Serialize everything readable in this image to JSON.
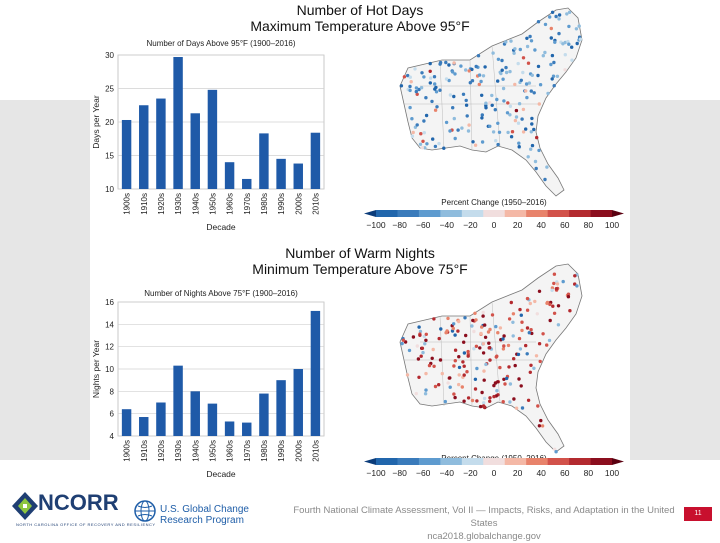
{
  "hot_days": {
    "title_line1": "Number of Hot Days",
    "title_line2": "Maximum Temperature Above 95°F",
    "map_legend_title": "Percent Change (1950–2016)"
  },
  "warm_nights": {
    "title_line1": "Number of Warm Nights",
    "title_line2": "Minimum Temperature Above 75°F",
    "map_legend_title": "Percent Change (1950–2016)"
  },
  "colorbar": {
    "ticks": [
      "−100",
      "−80",
      "−60",
      "−40",
      "−20",
      "0",
      "20",
      "40",
      "60",
      "80",
      "100"
    ],
    "colors": [
      "#2166ac",
      "#3a7bbb",
      "#5e9bcf",
      "#8fbcdd",
      "#c4dcec",
      "#f1dede",
      "#f4b8a6",
      "#e8836b",
      "#d2524a",
      "#b32a2f",
      "#8b0e1e"
    ]
  },
  "chart_data": [
    {
      "type": "bar",
      "title": "Number of Days Above 95°F (1900–2016)",
      "xlabel": "Decade",
      "ylabel": "Days per Year",
      "categories": [
        "1900s",
        "1910s",
        "1920s",
        "1930s",
        "1940s",
        "1950s",
        "1960s",
        "1970s",
        "1980s",
        "1990s",
        "2000s",
        "2010s"
      ],
      "values": [
        20.3,
        22.5,
        23.5,
        29.7,
        21.3,
        24.8,
        14.0,
        11.5,
        18.3,
        14.5,
        13.8,
        18.4
      ],
      "ylim": [
        10,
        30
      ],
      "yticks": [
        10,
        15,
        20,
        25,
        30
      ],
      "color": "#1f5aa8"
    },
    {
      "type": "bar",
      "title": "Number of Nights Above 75°F (1900–2016)",
      "xlabel": "Decade",
      "ylabel": "Nights per Year",
      "categories": [
        "1900s",
        "1910s",
        "1920s",
        "1930s",
        "1940s",
        "1950s",
        "1960s",
        "1970s",
        "1980s",
        "1990s",
        "2000s",
        "2010s"
      ],
      "values": [
        6.4,
        5.7,
        7.0,
        10.3,
        8.0,
        6.9,
        5.3,
        5.2,
        7.8,
        9.0,
        10.0,
        15.2
      ],
      "ylim": [
        4,
        16
      ],
      "yticks": [
        4,
        6,
        8,
        10,
        12,
        14,
        16
      ],
      "color": "#1f5aa8"
    }
  ],
  "footer": {
    "ncorr": "NCORR",
    "ncorr_sub": "NORTH CAROLINA OFFICE OF RECOVERY AND RESILIENCY",
    "usgc_line1": "U.S. Global Change",
    "usgc_line2": "Research Program",
    "nca_line1": "Fourth National Climate Assessment, Vol II — Impacts, Risks, and Adaptation in the United States",
    "nca_line2": "nca2018.globalchange.gov",
    "page_number": "11"
  }
}
